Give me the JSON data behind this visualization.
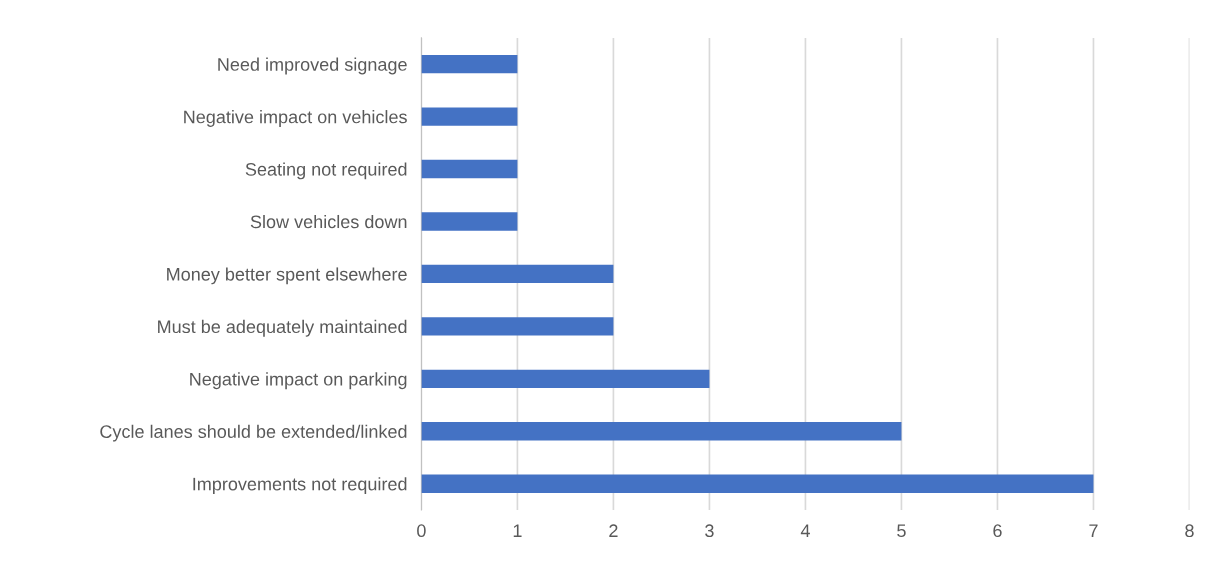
{
  "chart_data": {
    "type": "bar",
    "orientation": "horizontal",
    "categories": [
      "Need improved signage",
      "Negative impact on vehicles",
      "Seating not required",
      "Slow vehicles down",
      "Money better spent elsewhere",
      "Must be adequately maintained",
      "Negative impact on parking",
      "Cycle lanes should be extended/linked",
      "Improvements not required"
    ],
    "values": [
      1,
      1,
      1,
      1,
      2,
      2,
      3,
      5,
      7
    ],
    "color": "#4472c4",
    "xlim": [
      0,
      8
    ],
    "xticks": [
      0,
      1,
      2,
      3,
      4,
      5,
      6,
      7,
      8
    ],
    "grid": "x",
    "legend": false
  }
}
